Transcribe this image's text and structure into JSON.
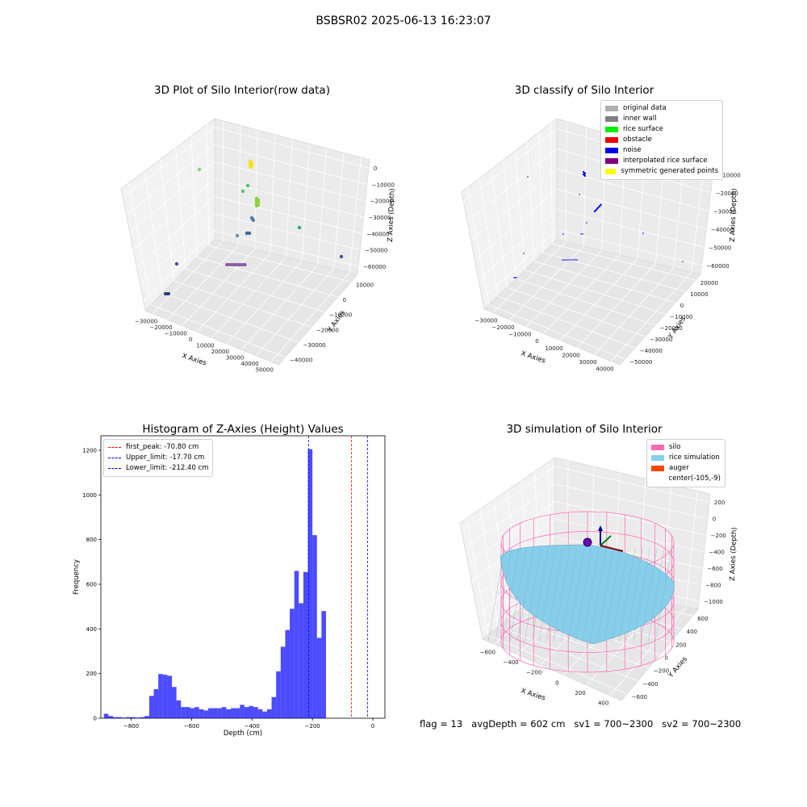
{
  "figure": {
    "title": "BSBSR02 2025-06-13 16:23:07",
    "footer": {
      "flag": "flag = 13",
      "avg_depth": "avgDepth = 602 cm",
      "sv1": "sv1 = 700~2300",
      "sv2": "sv2 = 700~2300"
    }
  },
  "chart_data": [
    {
      "type": "scatter",
      "title": "3D Plot of Silo Interior(row data)",
      "xlabel": "X Axies",
      "ylabel": "Y Axies",
      "zlabel": "Z Axies (Depth)",
      "x_ticks": [
        "−30000",
        "−20000",
        "−10000",
        "0",
        "10000",
        "20000",
        "30000",
        "40000",
        "50000"
      ],
      "y_ticks": [
        "10000",
        "0",
        "−10000",
        "−20000",
        "−30000",
        "−40000"
      ],
      "z_ticks": [
        "0",
        "−10000",
        "−20000",
        "−30000",
        "−40000",
        "−50000",
        "−60000"
      ],
      "xlim": [
        -30000,
        50000
      ],
      "ylim": [
        -40000,
        10000
      ],
      "zlim": [
        -60000,
        0
      ],
      "colormap": "viridis",
      "grid": true
    },
    {
      "type": "scatter",
      "title": "3D classify of Silo Interior",
      "xlabel": "X Axies",
      "ylabel": "Y Axies",
      "zlabel": "Z Axies (Depth)",
      "x_ticks": [
        "−30000",
        "−20000",
        "−10000",
        "0",
        "10000",
        "20000",
        "30000",
        "40000"
      ],
      "y_ticks": [
        "20000",
        "10000",
        "0",
        "−10000",
        "−20000",
        "−30000",
        "−40000",
        "−50000"
      ],
      "z_ticks": [
        "−10000",
        "−20000",
        "−30000",
        "−40000",
        "−50000",
        "−60000"
      ],
      "xlim": [
        -30000,
        40000
      ],
      "ylim": [
        -50000,
        20000
      ],
      "zlim": [
        -60000,
        -10000
      ],
      "legend": [
        {
          "label": "original data",
          "color": "#b0b0b0"
        },
        {
          "label": "inner wall",
          "color": "#808080"
        },
        {
          "label": "rice surface",
          "color": "#00ee00"
        },
        {
          "label": "obstacle",
          "color": "#ee0000"
        },
        {
          "label": "noise",
          "color": "#0000ee"
        },
        {
          "label": "interpolated rice surface",
          "color": "#800080"
        },
        {
          "label": "symmetric generated points",
          "color": "#ffff00"
        }
      ],
      "legend_position": "top-right",
      "grid": true
    },
    {
      "type": "bar",
      "title": "Histogram of Z-Axies (Height) Values",
      "xlabel": "Depth (cm)",
      "ylabel": "Frequency",
      "xlim": [
        -900,
        40
      ],
      "ylim": [
        0,
        1265
      ],
      "x_ticks": [
        "−800",
        "−600",
        "−400",
        "−200",
        "0"
      ],
      "y_ticks": [
        "0",
        "200",
        "400",
        "600",
        "800",
        "1000",
        "1200"
      ],
      "bar_color": "#0000ff",
      "bar_alpha": 0.7,
      "bin_start": -890,
      "bin_width": 15,
      "values": [
        20,
        10,
        5,
        5,
        3,
        5,
        5,
        3,
        5,
        10,
        100,
        130,
        198,
        195,
        190,
        140,
        80,
        50,
        50,
        45,
        50,
        40,
        35,
        45,
        45,
        45,
        50,
        40,
        45,
        45,
        60,
        50,
        55,
        50,
        40,
        30,
        40,
        95,
        210,
        320,
        395,
        490,
        660,
        515,
        655,
        1205,
        820,
        360,
        480
      ],
      "lines": [
        {
          "label": "first_peak: -70.80 cm",
          "value": -70.8,
          "color": "#ff0000"
        },
        {
          "label": "Upper_limit: -17.70 cm",
          "value": -17.7,
          "color": "#0000ff"
        },
        {
          "label": "Lower_limit: -212.40 cm",
          "value": -212.4,
          "color": "#0000ff"
        }
      ],
      "legend_position": "top-left"
    },
    {
      "type": "scatter",
      "title": "3D simulation of Silo Interior",
      "xlabel": "X Axies",
      "ylabel": "Y Axies",
      "zlabel": "Z Axies (Depth)",
      "x_ticks": [
        "−600",
        "−400",
        "−200",
        "0",
        "200",
        "400"
      ],
      "y_ticks": [
        "600",
        "400",
        "200",
        "0",
        "−200",
        "−400",
        "−600"
      ],
      "z_ticks": [
        "200",
        "0",
        "−200",
        "−400",
        "−600",
        "−800",
        "−1000"
      ],
      "legend": [
        {
          "label": "silo",
          "color": "#ff69b4"
        },
        {
          "label": "rice simulation",
          "color": "#87ceeb"
        },
        {
          "label": "auger",
          "color": "#ff4500"
        },
        {
          "label": "center(-105,-9)",
          "color": ""
        }
      ],
      "legend_position": "top-right",
      "grid": true
    }
  ]
}
